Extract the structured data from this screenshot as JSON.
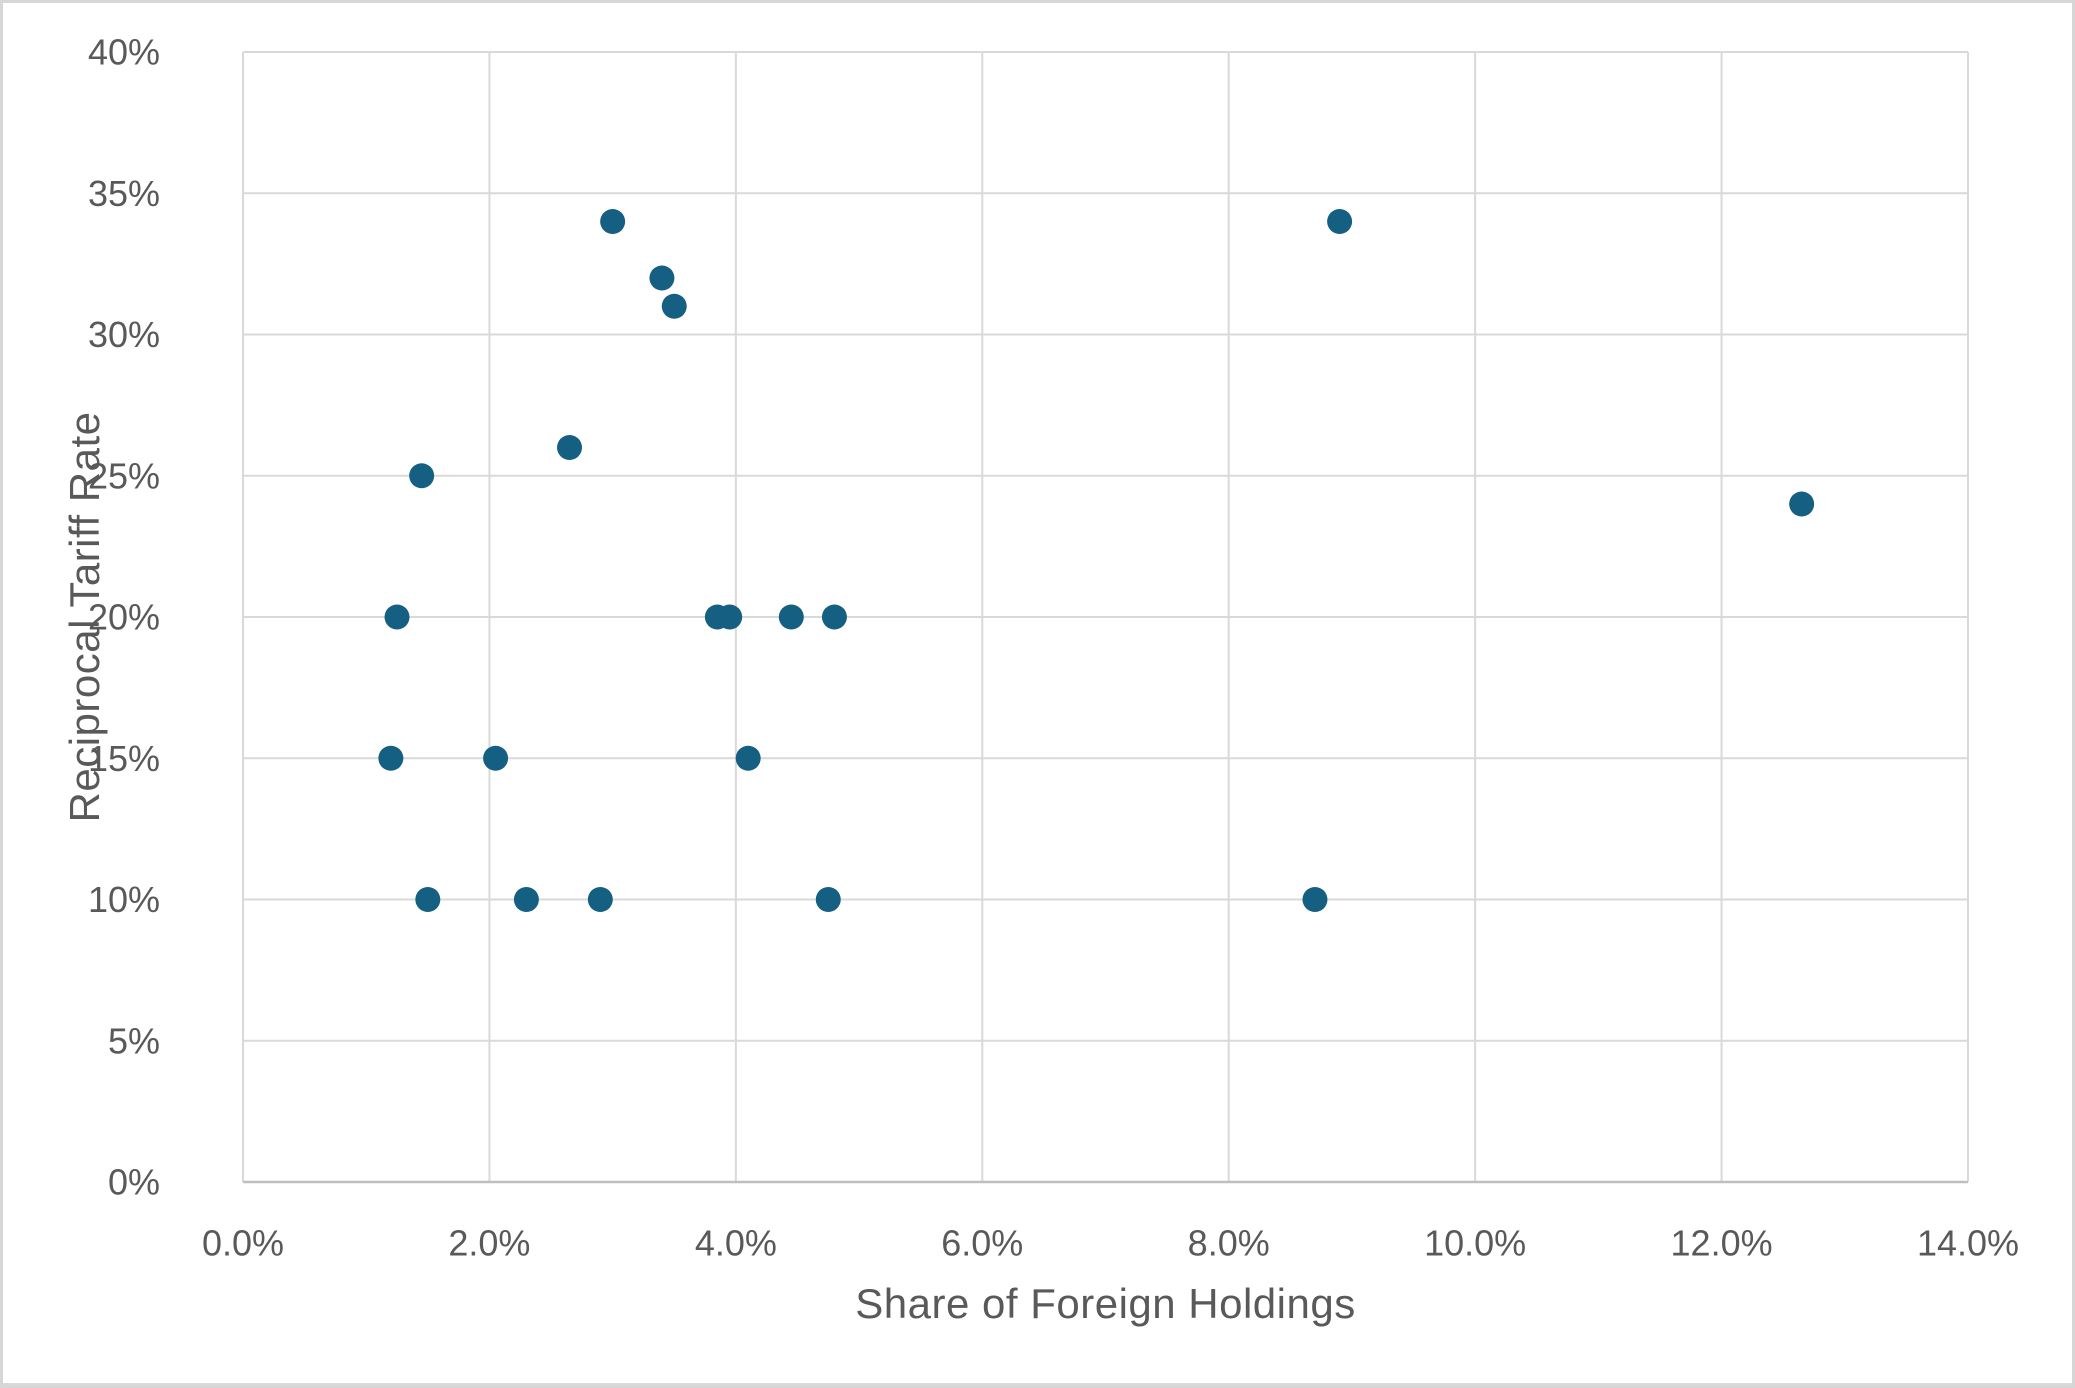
{
  "figure": {
    "background": "#ffffff",
    "border_color": "#d6d6d6"
  },
  "chart_data": {
    "type": "scatter",
    "title": "",
    "xlabel": "Share of Foreign Holdings",
    "ylabel": "Reciprocal Tariff Rate",
    "legend": false,
    "grid": true,
    "marker_color": "#156082",
    "gridline_color": "#D9D9D9",
    "axis_line_color": "#BFBFBF",
    "text_color": "#595959",
    "x_axis": {
      "min": 0,
      "max": 14,
      "unit": "%",
      "tick_values": [
        0,
        2,
        4,
        6,
        8,
        10,
        12,
        14
      ],
      "tick_labels": [
        "0.0%",
        "2.0%",
        "4.0%",
        "6.0%",
        "8.0%",
        "10.0%",
        "12.0%",
        "14.0%"
      ]
    },
    "y_axis": {
      "min": 0,
      "max": 40,
      "unit": "%",
      "tick_values": [
        0,
        5,
        10,
        15,
        20,
        25,
        30,
        35,
        40
      ],
      "tick_labels": [
        "0%",
        "5%",
        "10%",
        "15%",
        "20%",
        "25%",
        "30%",
        "35%",
        "40%"
      ]
    },
    "points": [
      {
        "x": 1.2,
        "y": 15
      },
      {
        "x": 1.25,
        "y": 20
      },
      {
        "x": 1.45,
        "y": 25
      },
      {
        "x": 1.5,
        "y": 10
      },
      {
        "x": 2.05,
        "y": 15
      },
      {
        "x": 2.3,
        "y": 10
      },
      {
        "x": 2.65,
        "y": 26
      },
      {
        "x": 2.9,
        "y": 10
      },
      {
        "x": 3.0,
        "y": 34
      },
      {
        "x": 3.4,
        "y": 32
      },
      {
        "x": 3.5,
        "y": 31
      },
      {
        "x": 3.85,
        "y": 20
      },
      {
        "x": 3.95,
        "y": 20
      },
      {
        "x": 4.1,
        "y": 15
      },
      {
        "x": 4.45,
        "y": 20
      },
      {
        "x": 4.75,
        "y": 10
      },
      {
        "x": 4.8,
        "y": 20
      },
      {
        "x": 8.7,
        "y": 10
      },
      {
        "x": 8.9,
        "y": 34
      },
      {
        "x": 12.65,
        "y": 24
      }
    ]
  }
}
